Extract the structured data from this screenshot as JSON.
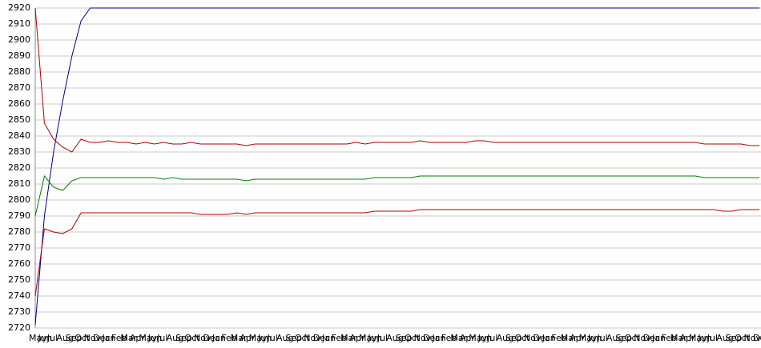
{
  "chart_data": {
    "type": "line",
    "categories": [
      "May",
      "Jun",
      "Jul",
      "Aug",
      "Sep",
      "Oct",
      "Nov",
      "Dec",
      "Jan",
      "Feb",
      "Mar",
      "Apr",
      "May",
      "Jun",
      "Jul",
      "Aug",
      "Sep",
      "Oct",
      "Nov",
      "Dec",
      "Jan",
      "Feb",
      "Mar",
      "Apr",
      "May",
      "Jun",
      "Jul",
      "Aug",
      "Sep",
      "Oct",
      "Nov",
      "Dec",
      "Jan",
      "Feb",
      "Mar",
      "Apr",
      "May",
      "Jun",
      "Jul",
      "Aug",
      "Sep",
      "Oct",
      "Nov",
      "Dec",
      "Jan",
      "Feb",
      "Mar",
      "Apr",
      "May",
      "Jun",
      "Jul",
      "Aug",
      "Sep",
      "Oct",
      "Nov",
      "Dec",
      "Jan",
      "Feb",
      "Mar",
      "Apr",
      "May",
      "Jun",
      "Jul",
      "Aug",
      "Sep",
      "Oct",
      "Nov",
      "Dec",
      "Jan",
      "Feb",
      "Mar",
      "Apr",
      "May",
      "Jun",
      "Jul",
      "Aug",
      "Sep",
      "Oct",
      "Nov",
      "Dec"
    ],
    "series": [
      {
        "color": "#00008b",
        "values": [
          2722,
          2790,
          2830,
          2862,
          2890,
          2912,
          2920,
          2920,
          2920,
          2920,
          2920,
          2920,
          2920,
          2920,
          2920,
          2920,
          2920,
          2920,
          2920,
          2920,
          2920,
          2920,
          2920,
          2920,
          2920,
          2920,
          2920,
          2920,
          2920,
          2920,
          2920,
          2920,
          2920,
          2920,
          2920,
          2920,
          2920,
          2920,
          2920,
          2920,
          2920,
          2920,
          2920,
          2920,
          2920,
          2920,
          2920,
          2920,
          2920,
          2920,
          2920,
          2920,
          2920,
          2920,
          2920,
          2920,
          2920,
          2920,
          2920,
          2920,
          2920,
          2920,
          2920,
          2920,
          2920,
          2920,
          2920,
          2920,
          2920,
          2920,
          2920,
          2920,
          2920,
          2920,
          2920,
          2920,
          2920,
          2920,
          2920,
          2920
        ]
      },
      {
        "color": "#b00000",
        "values": [
          2920,
          2848,
          2838,
          2833,
          2830,
          2838,
          2836,
          2836,
          2837,
          2836,
          2836,
          2835,
          2836,
          2835,
          2836,
          2835,
          2835,
          2836,
          2835,
          2835,
          2835,
          2835,
          2835,
          2834,
          2835,
          2835,
          2835,
          2835,
          2835,
          2835,
          2835,
          2835,
          2835,
          2835,
          2835,
          2836,
          2835,
          2836,
          2836,
          2836,
          2836,
          2836,
          2837,
          2836,
          2836,
          2836,
          2836,
          2836,
          2837,
          2837,
          2836,
          2836,
          2836,
          2836,
          2836,
          2836,
          2836,
          2836,
          2836,
          2836,
          2836,
          2836,
          2836,
          2836,
          2836,
          2836,
          2836,
          2836,
          2836,
          2836,
          2836,
          2836,
          2836,
          2835,
          2835,
          2835,
          2835,
          2835,
          2834,
          2834
        ]
      },
      {
        "color": "#008000",
        "values": [
          2790,
          2815,
          2808,
          2806,
          2812,
          2814,
          2814,
          2814,
          2814,
          2814,
          2814,
          2814,
          2814,
          2814,
          2813,
          2814,
          2813,
          2813,
          2813,
          2813,
          2813,
          2813,
          2813,
          2812,
          2813,
          2813,
          2813,
          2813,
          2813,
          2813,
          2813,
          2813,
          2813,
          2813,
          2813,
          2813,
          2813,
          2814,
          2814,
          2814,
          2814,
          2814,
          2815,
          2815,
          2815,
          2815,
          2815,
          2815,
          2815,
          2815,
          2815,
          2815,
          2815,
          2815,
          2815,
          2815,
          2815,
          2815,
          2815,
          2815,
          2815,
          2815,
          2815,
          2815,
          2815,
          2815,
          2815,
          2815,
          2815,
          2815,
          2815,
          2815,
          2815,
          2814,
          2814,
          2814,
          2814,
          2814,
          2814,
          2814
        ]
      },
      {
        "color": "#b00000",
        "values": [
          2740,
          2782,
          2780,
          2779,
          2782,
          2792,
          2792,
          2792,
          2792,
          2792,
          2792,
          2792,
          2792,
          2792,
          2792,
          2792,
          2792,
          2792,
          2791,
          2791,
          2791,
          2791,
          2792,
          2791,
          2792,
          2792,
          2792,
          2792,
          2792,
          2792,
          2792,
          2792,
          2792,
          2792,
          2792,
          2792,
          2792,
          2793,
          2793,
          2793,
          2793,
          2793,
          2794,
          2794,
          2794,
          2794,
          2794,
          2794,
          2794,
          2794,
          2794,
          2794,
          2794,
          2794,
          2794,
          2794,
          2794,
          2794,
          2794,
          2794,
          2794,
          2794,
          2794,
          2794,
          2794,
          2794,
          2794,
          2794,
          2794,
          2794,
          2794,
          2794,
          2794,
          2794,
          2794,
          2793,
          2793,
          2794,
          2794,
          2794
        ]
      }
    ],
    "ylim": [
      2720,
      2920
    ],
    "yticks": [
      2720,
      2730,
      2740,
      2750,
      2760,
      2770,
      2780,
      2790,
      2800,
      2810,
      2820,
      2830,
      2840,
      2850,
      2860,
      2870,
      2880,
      2890,
      2900,
      2910,
      2920
    ],
    "grid": true
  }
}
